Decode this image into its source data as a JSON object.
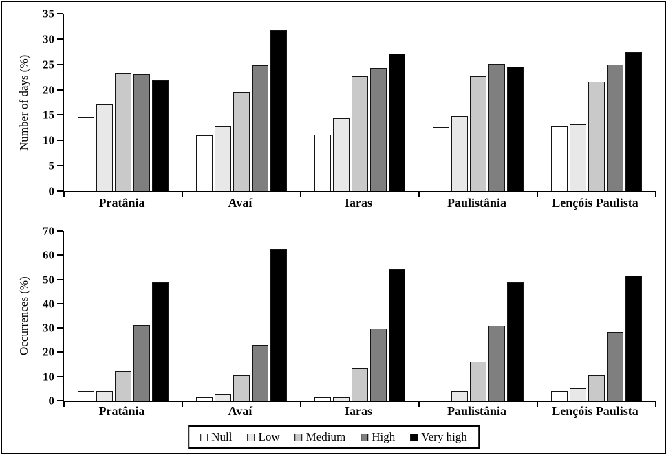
{
  "figure_title": "",
  "legend": {
    "items": [
      {
        "label": "Null",
        "color": "#ffffff"
      },
      {
        "label": "Low",
        "color": "#e8e8e8"
      },
      {
        "label": "Medium",
        "color": "#c9c9c9"
      },
      {
        "label": "High",
        "color": "#7f7f7f"
      },
      {
        "label": "Very high",
        "color": "#000000"
      }
    ]
  },
  "chart_data": [
    {
      "type": "bar",
      "title": "",
      "xlabel": "",
      "ylabel": "Number of days (%)",
      "ylim": [
        0,
        35
      ],
      "ytick_step": 5,
      "grid": false,
      "legend_position": "bottom-shared",
      "categories": [
        "Pratânia",
        "Avaí",
        "Iaras",
        "Paulistânia",
        "Lençóis Paulista"
      ],
      "series": [
        {
          "name": "Null",
          "color": "#ffffff",
          "values": [
            14.7,
            11.0,
            11.1,
            12.6,
            12.8
          ]
        },
        {
          "name": "Low",
          "color": "#e8e8e8",
          "values": [
            17.1,
            12.8,
            14.4,
            14.8,
            13.1
          ]
        },
        {
          "name": "Medium",
          "color": "#c9c9c9",
          "values": [
            23.3,
            19.5,
            22.7,
            22.7,
            21.6
          ]
        },
        {
          "name": "High",
          "color": "#7f7f7f",
          "values": [
            23.1,
            24.8,
            24.3,
            25.1,
            24.9
          ]
        },
        {
          "name": "Very high",
          "color": "#000000",
          "values": [
            21.8,
            31.7,
            27.1,
            24.6,
            27.4
          ]
        }
      ]
    },
    {
      "type": "bar",
      "title": "",
      "xlabel": "",
      "ylabel": "Occurrences (%)",
      "ylim": [
        0,
        70
      ],
      "ytick_step": 10,
      "grid": false,
      "legend_position": "bottom-shared",
      "categories": [
        "Pratânia",
        "Avaí",
        "Iaras",
        "Paulistânia",
        "Lençóis Paulista"
      ],
      "series": [
        {
          "name": "Null",
          "color": "#ffffff",
          "values": [
            4.1,
            1.3,
            1.4,
            0,
            4.0
          ]
        },
        {
          "name": "Low",
          "color": "#e8e8e8",
          "values": [
            4.0,
            2.7,
            1.4,
            4.0,
            5.2
          ]
        },
        {
          "name": "Medium",
          "color": "#c9c9c9",
          "values": [
            12.2,
            10.6,
            13.3,
            16.2,
            10.6
          ]
        },
        {
          "name": "High",
          "color": "#7f7f7f",
          "values": [
            31.1,
            23.0,
            29.8,
            31.0,
            28.4
          ]
        },
        {
          "name": "Very high",
          "color": "#000000",
          "values": [
            48.8,
            62.4,
            54.2,
            48.8,
            51.5
          ]
        }
      ]
    }
  ]
}
